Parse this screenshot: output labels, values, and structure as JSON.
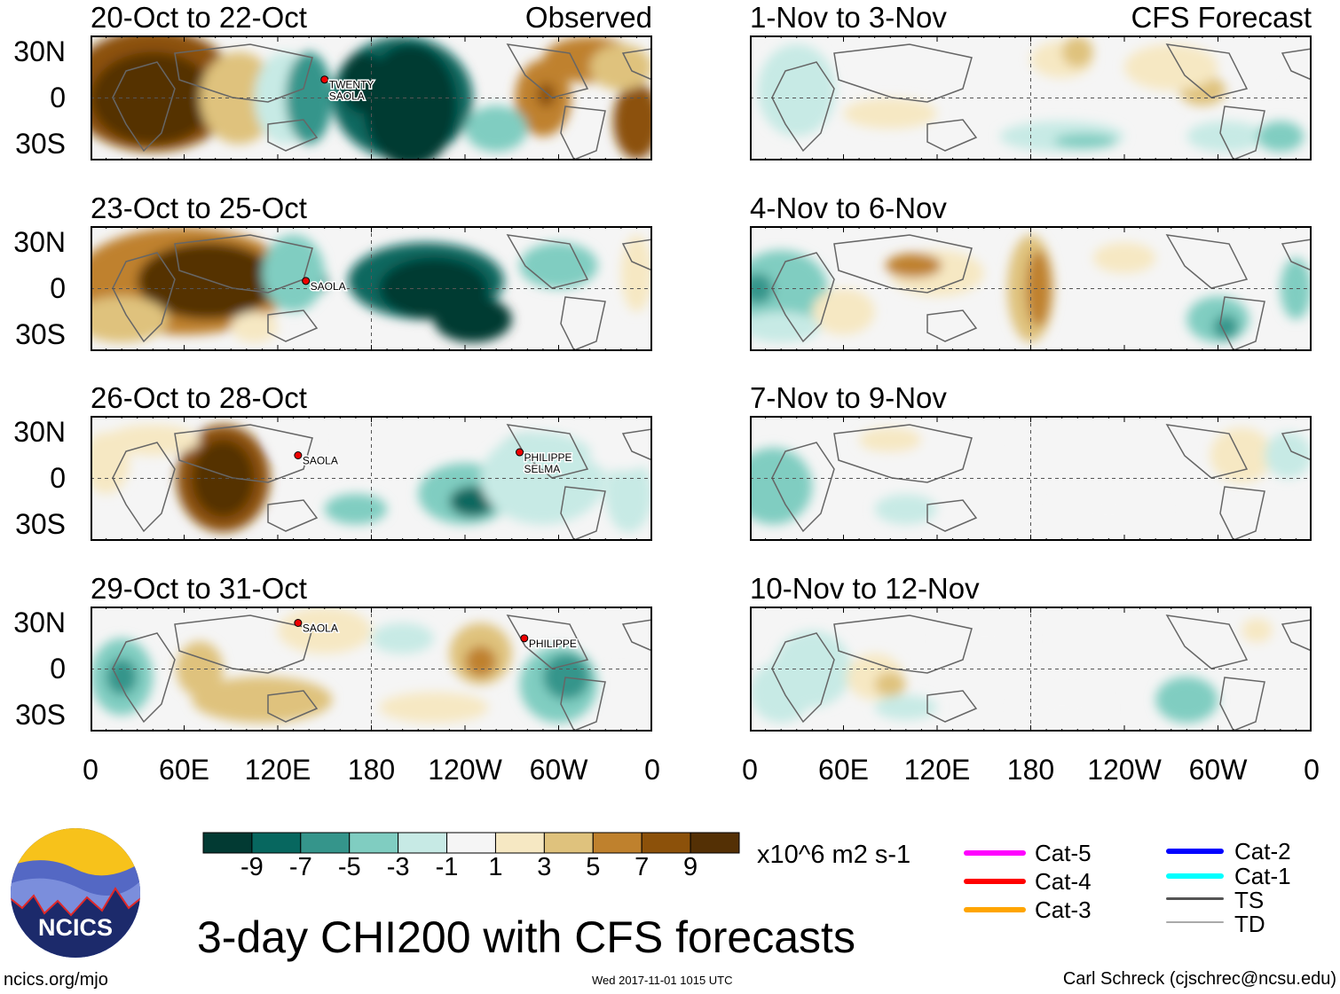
{
  "chart_data": {
    "type": "heatmap",
    "title": "3-day CHI200 with CFS forecasts",
    "units": "x10^6 m2 s-1",
    "columns": [
      {
        "header": "Observed",
        "panels": [
          "20-Oct to 22-Oct",
          "23-Oct to 25-Oct",
          "26-Oct to 28-Oct",
          "29-Oct to 31-Oct"
        ]
      },
      {
        "header": "CFS Forecast",
        "panels": [
          "1-Nov to 3-Nov",
          "4-Nov to 6-Nov",
          "7-Nov to 9-Nov",
          "10-Nov to 12-Nov"
        ]
      }
    ],
    "ylabels": [
      "30N",
      "0",
      "30S"
    ],
    "xlabels": [
      "0",
      "60E",
      "120E",
      "180",
      "120W",
      "60W",
      "0"
    ],
    "xlim_deg": [
      0,
      360
    ],
    "ylim_deg": [
      -40,
      40
    ],
    "colorbar": {
      "ticks": [
        "-9",
        "-7",
        "-5",
        "-3",
        "-1",
        "1",
        "3",
        "5",
        "7",
        "9"
      ],
      "colors": [
        "#023a33",
        "#07675f",
        "#35958b",
        "#80cdc1",
        "#c7eae5",
        "#f5f5f5",
        "#f6e8c3",
        "#dfc27d",
        "#bf812d",
        "#8c510a",
        "#543005"
      ]
    },
    "storms": [
      {
        "panel": 0,
        "names": [
          "TWENTY",
          "SAOLA"
        ],
        "lon": 150,
        "lat": 12
      },
      {
        "panel": 1,
        "names": [
          "SAOLA"
        ],
        "lon": 138,
        "lat": 5
      },
      {
        "panel": 2,
        "names": [
          "SAOLA"
        ],
        "lon": 133,
        "lat": 15
      },
      {
        "panel": 2,
        "names": [
          "PHILIPPE",
          "SELMA"
        ],
        "lon": 275,
        "lat": 17
      },
      {
        "panel": 3,
        "names": [
          "SAOLA"
        ],
        "lon": 133,
        "lat": 30
      },
      {
        "panel": 3,
        "names": [
          "PHILIPPE"
        ],
        "lon": 278,
        "lat": 20
      }
    ]
  },
  "legend": {
    "items": [
      {
        "label": "Cat-5",
        "color": "#ff00ff"
      },
      {
        "label": "Cat-4",
        "color": "#ff0000"
      },
      {
        "label": "Cat-3",
        "color": "#ffa500"
      },
      {
        "label": "Cat-2",
        "color": "#0000ff"
      },
      {
        "label": "Cat-1",
        "color": "#00ffff"
      },
      {
        "label": "TS",
        "color": "#555555"
      },
      {
        "label": "TD",
        "color": "#aaaaaa"
      }
    ]
  },
  "footer": {
    "site": "ncics.org/mjo",
    "timestamp": "Wed 2017-11-01 1015 UTC",
    "credit": "Carl Schreck (cjschrec@ncsu.edu)",
    "logo_text": "NCICS"
  }
}
